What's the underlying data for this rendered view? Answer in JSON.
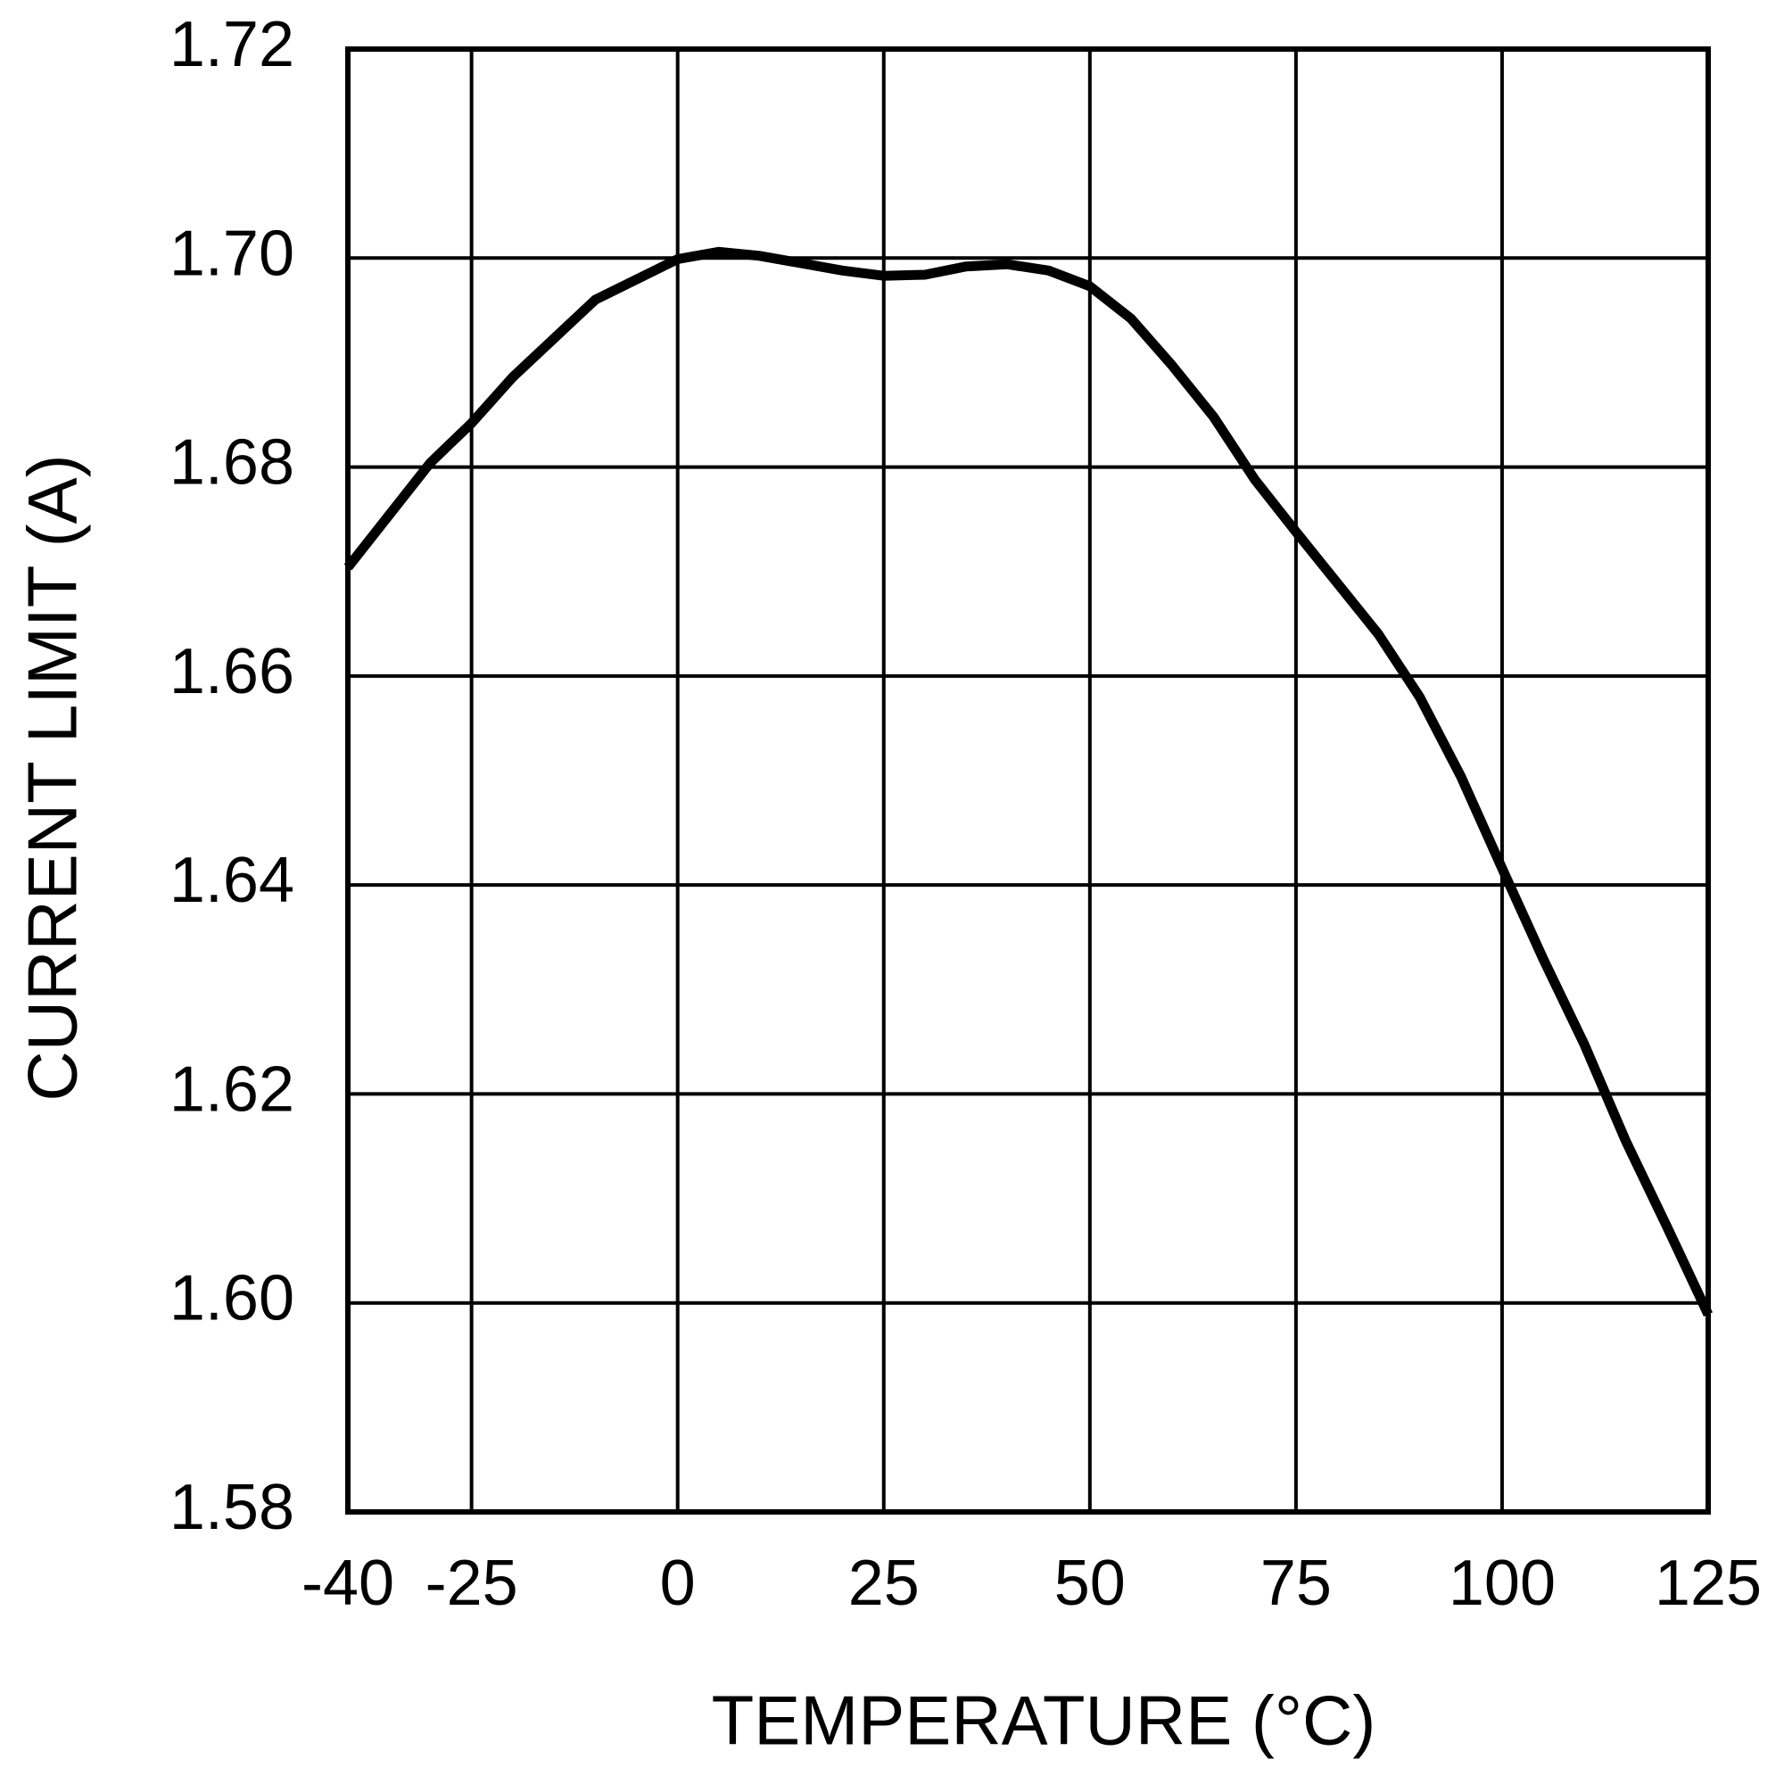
{
  "chart_data": {
    "type": "line",
    "xlabel": "TEMPERATURE (°C)",
    "ylabel": "CURRENT LIMIT (A)",
    "x": [
      -40,
      -30,
      -25,
      -20,
      -10,
      0,
      5,
      10,
      15,
      20,
      25,
      30,
      35,
      40,
      45,
      50,
      55,
      60,
      65,
      70,
      75,
      80,
      85,
      90,
      95,
      100,
      105,
      110,
      115,
      120,
      125
    ],
    "values": [
      1.6704,
      1.6804,
      1.6842,
      1.6886,
      1.696,
      1.6999,
      1.7006,
      1.7002,
      1.6995,
      1.6988,
      1.6983,
      1.6984,
      1.6992,
      1.6994,
      1.6988,
      1.6973,
      1.6942,
      1.6897,
      1.6848,
      1.6788,
      1.6738,
      1.6689,
      1.664,
      1.658,
      1.6504,
      1.6416,
      1.6329,
      1.6247,
      1.6155,
      1.6073,
      1.5989
    ],
    "color": "#000000",
    "xlim": [
      -40,
      125
    ],
    "xticks": [
      -40,
      -25,
      0,
      25,
      50,
      75,
      100,
      125
    ],
    "ylim": [
      1.58,
      1.72
    ],
    "yticks": [
      1.58,
      {
        "value": 1.6,
        "label": "1.60"
      },
      1.62,
      1.64,
      1.66,
      1.68,
      {
        "value": 1.7,
        "label": "1.70"
      },
      1.72
    ],
    "grid": true
  }
}
